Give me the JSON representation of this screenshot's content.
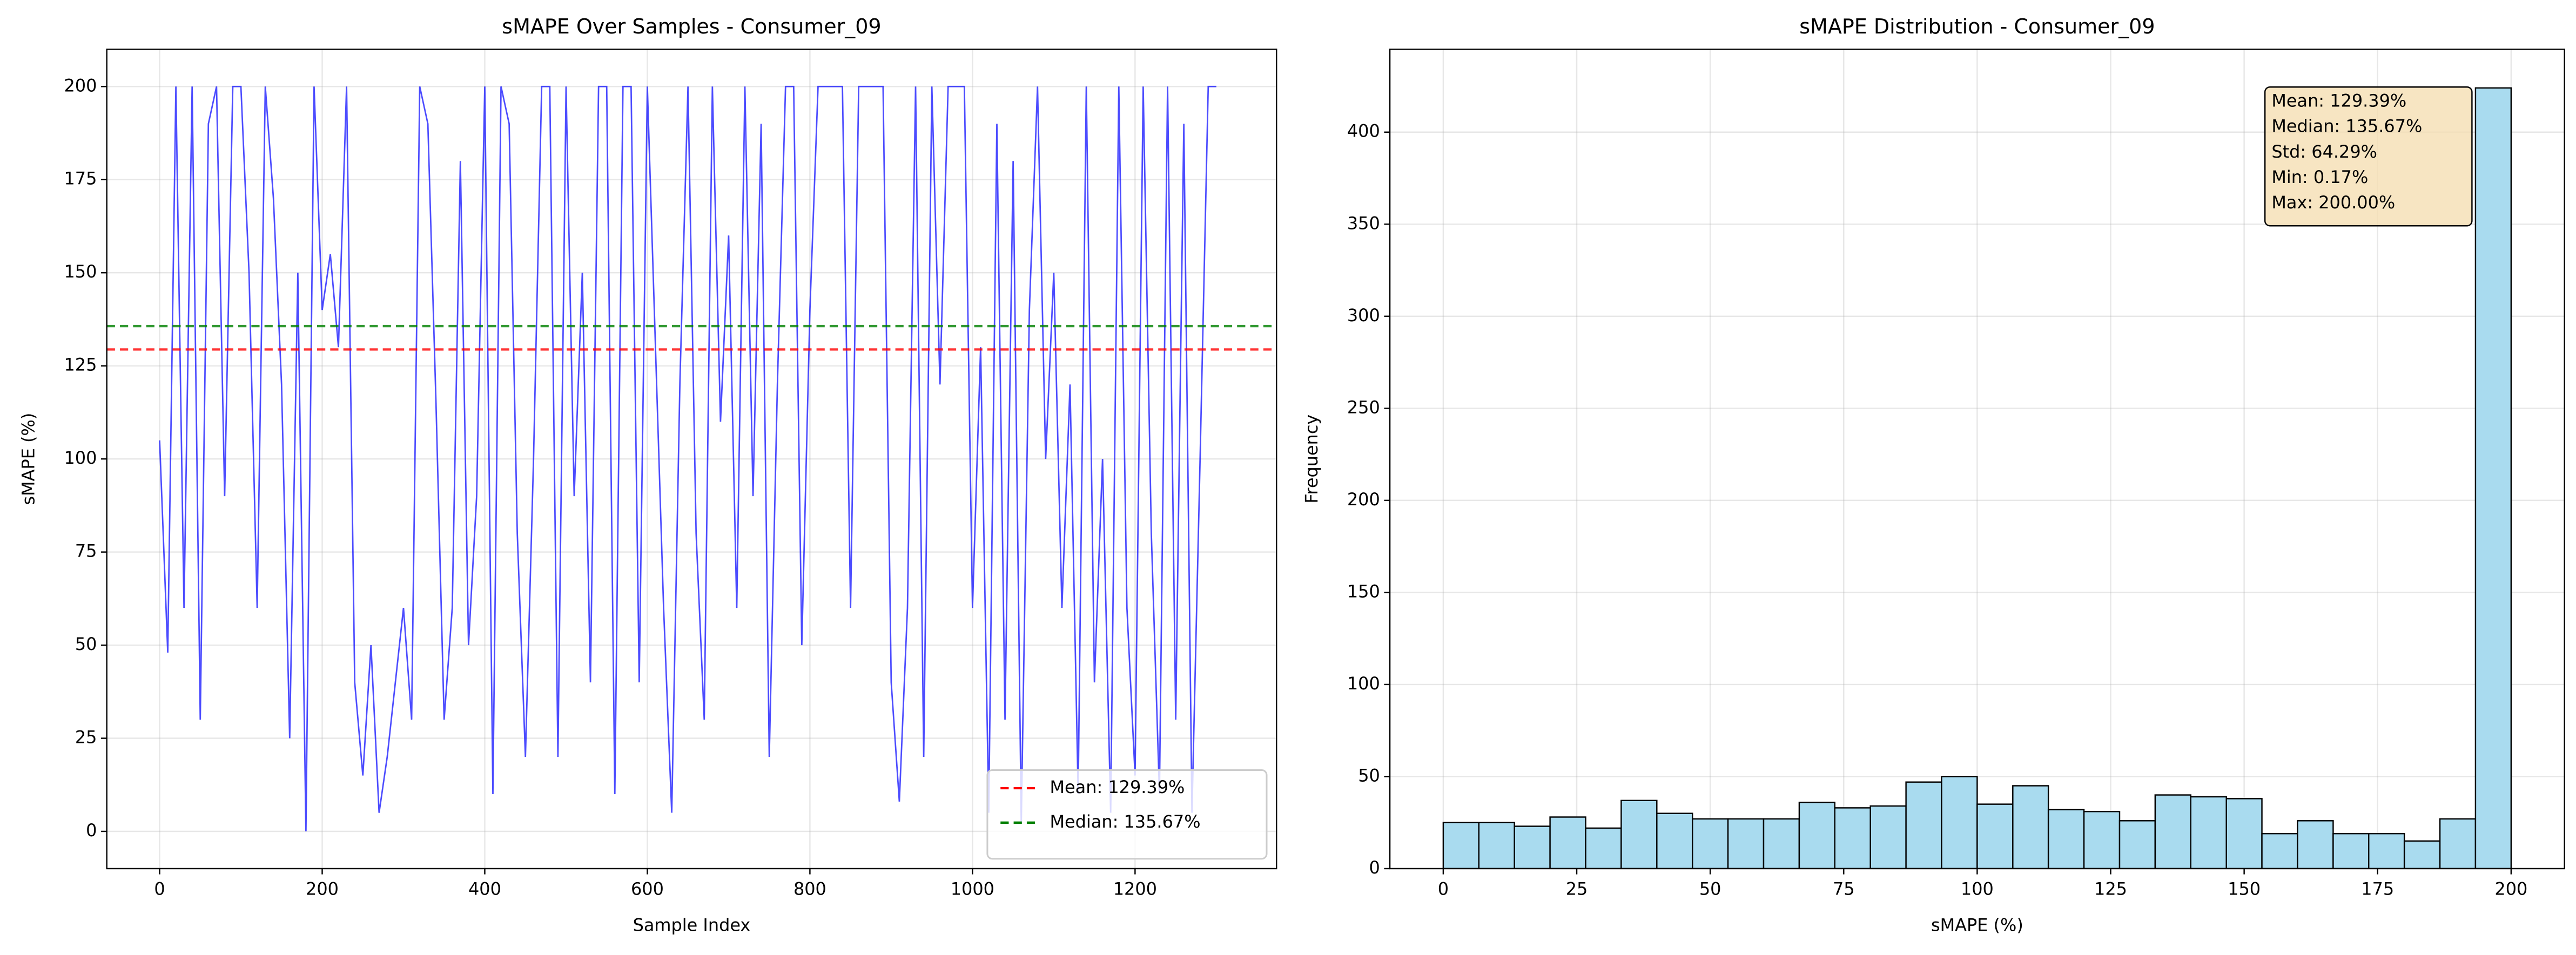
{
  "chart_data": [
    {
      "type": "line",
      "title": "sMAPE Over Samples - Consumer_09",
      "x_label": "Sample Index",
      "y_label": "sMAPE (%)",
      "color": "#0000ff",
      "x": [
        0,
        10,
        20,
        30,
        40,
        50,
        60,
        70,
        80,
        90,
        100,
        110,
        120,
        130,
        140,
        150,
        160,
        170,
        180,
        190,
        200,
        210,
        220,
        230,
        240,
        250,
        260,
        270,
        280,
        290,
        300,
        310,
        320,
        330,
        340,
        350,
        360,
        370,
        380,
        390,
        400,
        410,
        420,
        430,
        440,
        450,
        460,
        470,
        480,
        490,
        500,
        510,
        520,
        530,
        540,
        550,
        560,
        570,
        580,
        590,
        600,
        610,
        620,
        630,
        640,
        650,
        660,
        670,
        680,
        690,
        700,
        710,
        720,
        730,
        740,
        750,
        760,
        770,
        780,
        790,
        800,
        810,
        820,
        830,
        840,
        850,
        860,
        870,
        880,
        890,
        900,
        910,
        920,
        930,
        940,
        950,
        960,
        970,
        980,
        990,
        1000,
        1010,
        1020,
        1030,
        1040,
        1050,
        1060,
        1070,
        1080,
        1090,
        1100,
        1110,
        1120,
        1130,
        1140,
        1150,
        1160,
        1170,
        1180,
        1190,
        1200,
        1210,
        1220,
        1230,
        1240,
        1250,
        1260,
        1270,
        1280,
        1290,
        1300
      ],
      "values": [
        105,
        48,
        200,
        60,
        200,
        30,
        190,
        200,
        90,
        200,
        200,
        150,
        60,
        200,
        170,
        120,
        25,
        150,
        0,
        200,
        140,
        155,
        130,
        200,
        40,
        15,
        50,
        5,
        20,
        40,
        60,
        30,
        200,
        190,
        115,
        30,
        60,
        180,
        50,
        90,
        200,
        10,
        200,
        190,
        80,
        20,
        100,
        200,
        200,
        20,
        200,
        90,
        150,
        40,
        200,
        200,
        10,
        200,
        200,
        40,
        200,
        130,
        60,
        5,
        120,
        200,
        80,
        30,
        200,
        110,
        160,
        60,
        200,
        90,
        190,
        20,
        120,
        200,
        200,
        50,
        140,
        200,
        200,
        200,
        200,
        60,
        200,
        200,
        200,
        200,
        40,
        8,
        60,
        200,
        20,
        200,
        120,
        200,
        200,
        200,
        60,
        130,
        5,
        190,
        30,
        180,
        2,
        140,
        200,
        100,
        150,
        60,
        120,
        10,
        200,
        40,
        100,
        5,
        200,
        60,
        15,
        200,
        80,
        10,
        200,
        30,
        190,
        5,
        100,
        200,
        200
      ],
      "hlines": [
        {
          "name": "Mean: 129.39%",
          "value": 129.39,
          "color": "#ff0000"
        },
        {
          "name": "Median: 135.67%",
          "value": 135.67,
          "color": "#008000"
        }
      ],
      "xlim": [
        -65,
        1374
      ],
      "ylim": [
        -10,
        210
      ],
      "xticks": [
        0,
        200,
        400,
        600,
        800,
        1000,
        1200
      ],
      "yticks": [
        0,
        25,
        50,
        75,
        100,
        125,
        150,
        175,
        200
      ],
      "grid": true,
      "legend": "lower right"
    },
    {
      "type": "histogram",
      "title": "sMAPE Distribution - Consumer_09",
      "x_label": "sMAPE (%)",
      "y_label": "Frequency",
      "color": "#a9dbef",
      "edgecolor": "#000000",
      "bins": [
        0,
        6.67,
        13.33,
        20,
        26.67,
        33.33,
        40,
        46.67,
        53.33,
        60,
        66.67,
        73.33,
        80,
        86.67,
        93.33,
        100,
        106.67,
        113.33,
        120,
        126.67,
        133.33,
        140,
        146.67,
        153.33,
        160,
        166.67,
        173.33,
        180,
        186.67,
        193.33,
        200
      ],
      "counts": [
        25,
        25,
        23,
        28,
        22,
        37,
        30,
        27,
        27,
        27,
        36,
        33,
        34,
        47,
        50,
        35,
        45,
        32,
        31,
        26,
        40,
        39,
        38,
        19,
        26,
        19,
        19,
        15,
        27,
        424
      ],
      "annotation": [
        "Mean: 129.39%",
        "Median: 135.67%",
        "Std: 64.29%",
        "Min: 0.17%",
        "Max: 200.00%"
      ],
      "xlim": [
        -10,
        210
      ],
      "ylim": [
        0,
        445
      ],
      "xticks": [
        0,
        25,
        50,
        75,
        100,
        125,
        150,
        175,
        200
      ],
      "yticks": [
        0,
        50,
        100,
        150,
        200,
        250,
        300,
        350,
        400
      ],
      "grid": true
    }
  ]
}
